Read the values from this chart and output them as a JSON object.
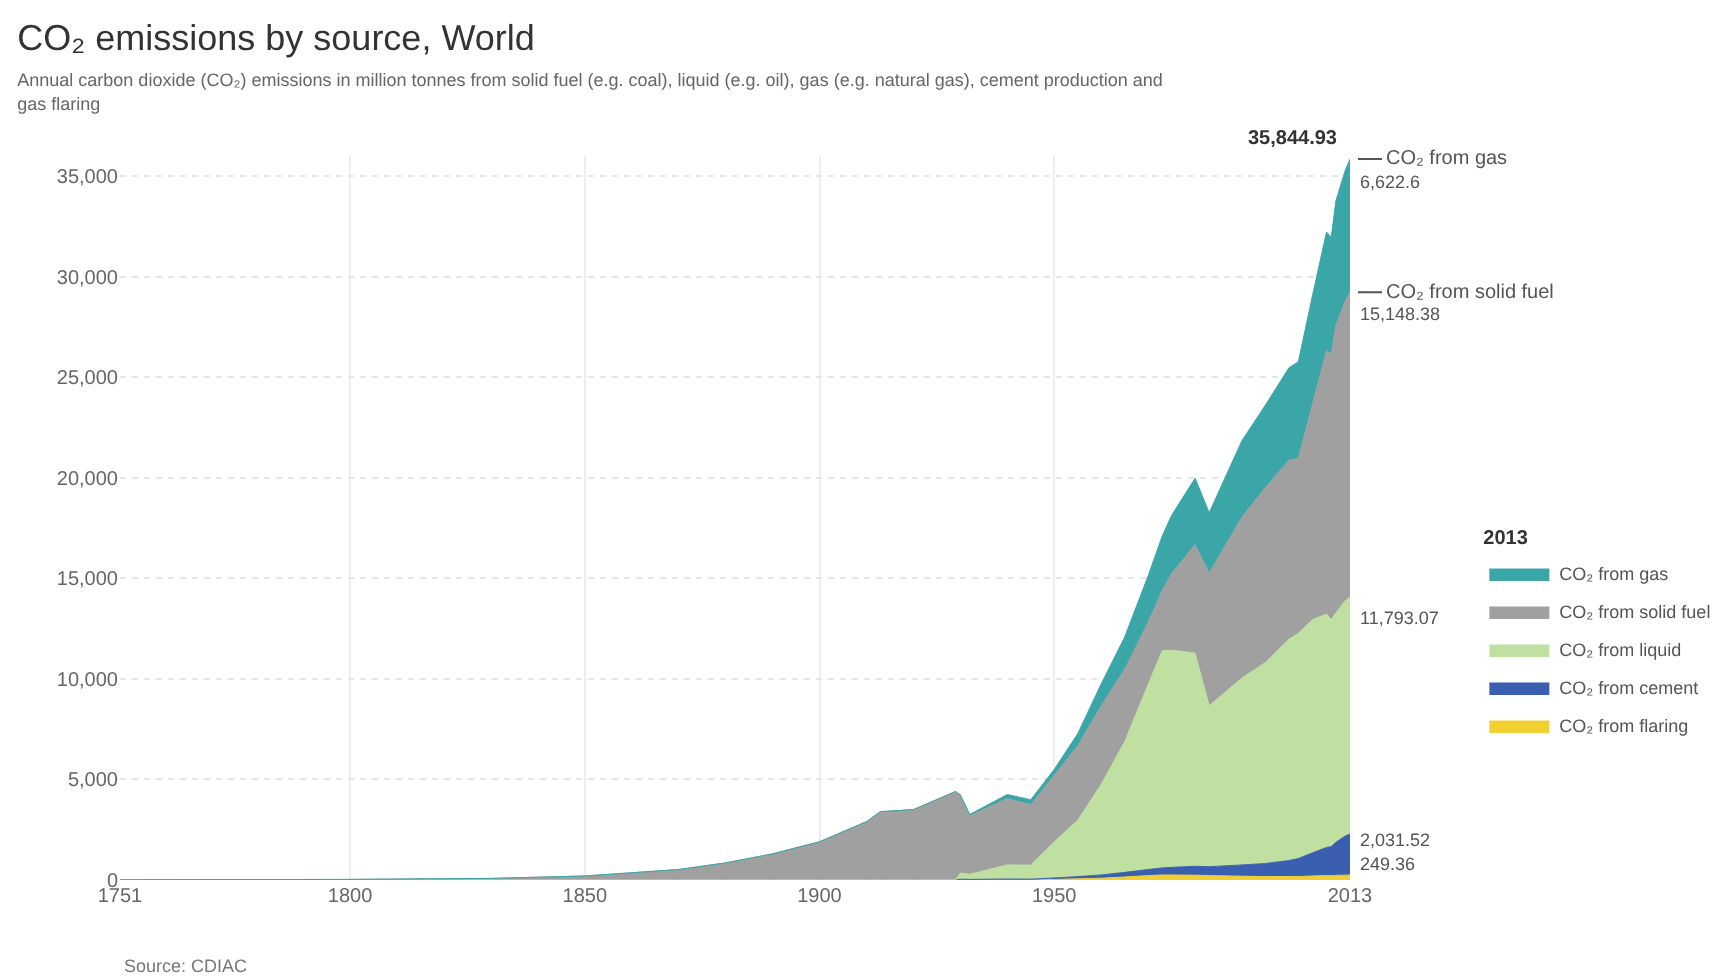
{
  "chart_data": {
    "type": "area",
    "stacked": true,
    "title": "CO₂ emissions by source, World",
    "subtitle": "Annual carbon dioxide (CO₂) emissions in million tonnes from solid fuel (e.g. coal), liquid (e.g. oil), gas (e.g. natural gas), cement production and gas flaring",
    "legend_title": "2013",
    "legend": "right",
    "grid": true,
    "x": [
      1751,
      1800,
      1830,
      1850,
      1870,
      1880,
      1890,
      1900,
      1910,
      1913,
      1920,
      1929,
      1930,
      1932,
      1940,
      1945,
      1950,
      1955,
      1960,
      1965,
      1970,
      1973,
      1975,
      1980,
      1983,
      1990,
      1995,
      2000,
      2002,
      2005,
      2008,
      2009,
      2010,
      2012,
      2013
    ],
    "series": [
      {
        "name": "CO₂ from flaring",
        "color": "#f0d030",
        "values": [
          0,
          0,
          0,
          0,
          0,
          0,
          0,
          0,
          0,
          0,
          0,
          0,
          0,
          0,
          0,
          0,
          30,
          60,
          90,
          150,
          220,
          250,
          250,
          240,
          220,
          190,
          170,
          170,
          170,
          200,
          220,
          210,
          230,
          240,
          249.36
        ],
        "value_labels": [
          null,
          null,
          null,
          null,
          null,
          null,
          null,
          null,
          null,
          null,
          null,
          null,
          null,
          null,
          null,
          null,
          null,
          null,
          null,
          null,
          null,
          null,
          null,
          null,
          null,
          null,
          null,
          null,
          null,
          null,
          null,
          null,
          null,
          null,
          "249.36"
        ]
      },
      {
        "name": "CO₂ from cement",
        "color": "#3a5fb0",
        "values": [
          0,
          0,
          0,
          0,
          0,
          0,
          0,
          0,
          0,
          0,
          0,
          0,
          40,
          30,
          50,
          40,
          70,
          110,
          160,
          230,
          300,
          350,
          380,
          440,
          440,
          560,
          650,
          800,
          900,
          1150,
          1400,
          1450,
          1650,
          1950,
          2031.52
        ],
        "value_labels": [
          null,
          null,
          null,
          null,
          null,
          null,
          null,
          null,
          null,
          null,
          null,
          null,
          null,
          null,
          null,
          null,
          null,
          null,
          null,
          null,
          null,
          null,
          null,
          null,
          null,
          null,
          null,
          null,
          null,
          null,
          null,
          null,
          null,
          null,
          "2,031.52"
        ]
      },
      {
        "name": "CO₂ from liquid",
        "color": "#bfe0a0",
        "values": [
          0,
          0,
          0,
          0,
          0,
          0,
          0,
          0,
          0,
          0,
          0,
          0,
          300,
          250,
          700,
          700,
          1800,
          2800,
          4500,
          6500,
          9200,
          10800,
          10800,
          10600,
          8000,
          9300,
          10000,
          11000,
          11200,
          11600,
          11600,
          11300,
          11400,
          11700,
          11793.07
        ],
        "value_labels": [
          null,
          null,
          null,
          null,
          null,
          null,
          null,
          null,
          null,
          null,
          null,
          null,
          null,
          null,
          null,
          null,
          null,
          null,
          null,
          null,
          null,
          null,
          null,
          null,
          null,
          null,
          null,
          null,
          null,
          null,
          null,
          null,
          null,
          null,
          "11,793.07"
        ]
      },
      {
        "name": "CO₂ from solid fuel",
        "color": "#a0a0a0",
        "values": [
          10,
          30,
          80,
          200,
          520,
          850,
          1300,
          1900,
          2900,
          3400,
          3500,
          4400,
          3800,
          2900,
          3300,
          3000,
          3300,
          3700,
          3900,
          3600,
          3100,
          3000,
          3800,
          5400,
          6600,
          8000,
          8700,
          8900,
          8700,
          10700,
          13100,
          13200,
          14300,
          14900,
          15148.38
        ],
        "value_labels": [
          null,
          null,
          null,
          null,
          null,
          null,
          null,
          null,
          null,
          null,
          null,
          null,
          null,
          null,
          null,
          null,
          null,
          null,
          null,
          null,
          null,
          null,
          null,
          null,
          null,
          null,
          null,
          null,
          null,
          null,
          null,
          null,
          null,
          null,
          "15,148.38"
        ]
      },
      {
        "name": "CO₂ from gas",
        "color": "#3aa6a8",
        "values": [
          0,
          0,
          0,
          0,
          0,
          0,
          0,
          0,
          0,
          0,
          0,
          0,
          100,
          80,
          200,
          250,
          300,
          600,
          1100,
          1600,
          2300,
          2700,
          2900,
          3300,
          3000,
          3800,
          4100,
          4600,
          4800,
          5400,
          5900,
          5800,
          6200,
          6500,
          6622.6
        ],
        "value_labels": [
          null,
          null,
          null,
          null,
          null,
          null,
          null,
          null,
          null,
          null,
          null,
          null,
          null,
          null,
          null,
          null,
          null,
          null,
          null,
          null,
          null,
          null,
          null,
          null,
          null,
          null,
          null,
          null,
          null,
          null,
          null,
          null,
          null,
          null,
          "6,622.6"
        ]
      }
    ],
    "totals": [
      null,
      null,
      null,
      null,
      null,
      null,
      null,
      null,
      null,
      null,
      null,
      null,
      null,
      null,
      null,
      null,
      null,
      null,
      null,
      null,
      null,
      null,
      null,
      null,
      null,
      null,
      null,
      null,
      null,
      null,
      null,
      null,
      null,
      null,
      "35,844.93"
    ],
    "xlim": [
      1751,
      2013
    ],
    "xticks": [
      1751,
      1800,
      1850,
      1900,
      1950,
      2013
    ],
    "ylim": [
      0,
      36000
    ],
    "yticks": [
      {
        "value": 0,
        "label": "0"
      },
      {
        "value": 5000,
        "label": "5,000"
      },
      {
        "value": 10000,
        "label": "10,000"
      },
      {
        "value": 15000,
        "label": "15,000"
      },
      {
        "value": 20000,
        "label": "20,000"
      },
      {
        "value": 25000,
        "label": "25,000"
      },
      {
        "value": 30000,
        "label": "30,000"
      },
      {
        "value": 35000,
        "label": "35,000"
      }
    ],
    "annotations": [
      {
        "text": "CO₂ from gas",
        "x": 2013,
        "y": 35844.93
      },
      {
        "text": "CO₂ from solid fuel",
        "x": 2013,
        "y": 29222.33
      },
      "Source: CDIAC"
    ]
  }
}
